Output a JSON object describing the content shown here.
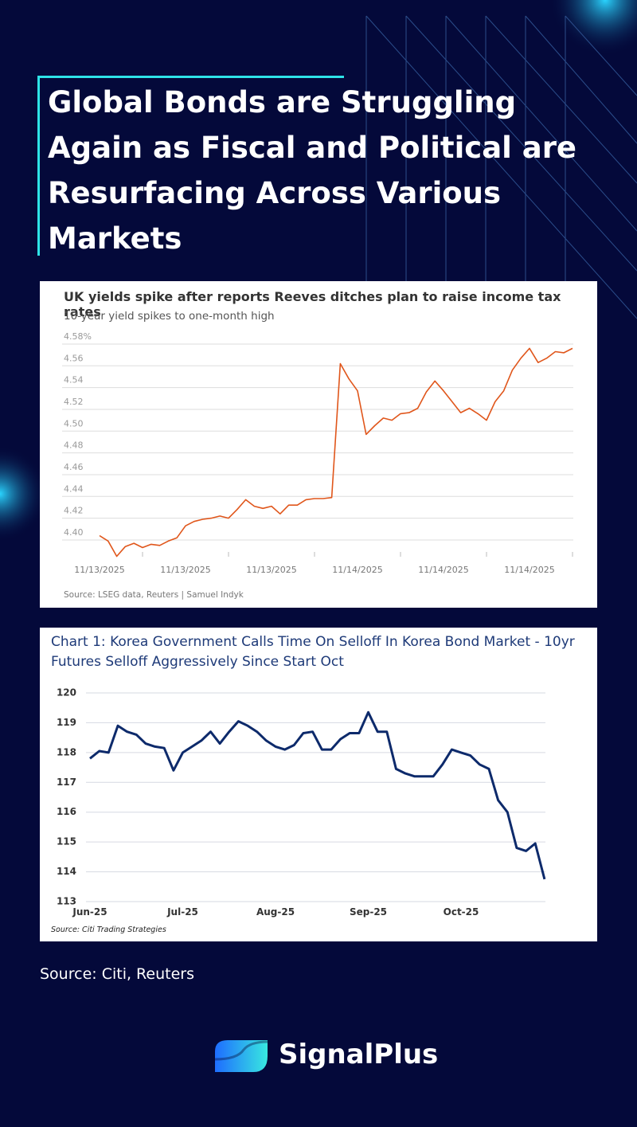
{
  "header": {
    "title": "Global Bonds are Struggling Again as Fiscal and Political are Resurfacing Across Various Markets"
  },
  "chart_data": [
    {
      "type": "line",
      "title": "UK yields spike after reports Reeves ditches plan to raise income tax rates",
      "subtitle": "10-year yield spikes to one-month high",
      "source": "Source: LSEG data, Reuters | Samuel Indyk",
      "categories": [
        "11/13/2025",
        null,
        null,
        null,
        null,
        null,
        null,
        null,
        null,
        null,
        "11/13/2025",
        null,
        null,
        null,
        null,
        null,
        null,
        null,
        null,
        null,
        "11/13/2025",
        null,
        null,
        null,
        null,
        null,
        null,
        null,
        null,
        null,
        "11/14/2025",
        null,
        null,
        null,
        null,
        null,
        null,
        null,
        null,
        null,
        "11/14/2025",
        null,
        null,
        null,
        null,
        null,
        null,
        null,
        null,
        null,
        "11/14/2025",
        null,
        null,
        null,
        null,
        null
      ],
      "series": [
        {
          "name": "10-year yield",
          "color": "#e0561b",
          "values": [
            4.404,
            4.399,
            4.385,
            4.394,
            4.397,
            4.393,
            4.396,
            4.395,
            4.399,
            4.402,
            4.413,
            4.417,
            4.419,
            4.42,
            4.422,
            4.42,
            4.428,
            4.437,
            4.431,
            4.429,
            4.431,
            4.424,
            4.432,
            4.432,
            4.437,
            4.438,
            4.438,
            4.439,
            4.562,
            4.548,
            4.537,
            4.497,
            4.505,
            4.512,
            4.51,
            4.516,
            4.517,
            4.521,
            4.536,
            4.546,
            4.537,
            4.527,
            4.517,
            4.521,
            4.516,
            4.51,
            4.527,
            4.537,
            4.556,
            4.567,
            4.576,
            4.563,
            4.567,
            4.573,
            4.572,
            4.576
          ]
        }
      ],
      "ylim": [
        4.38,
        4.59
      ],
      "yticks": [
        {
          "value": 4.4,
          "label": "4.40"
        },
        4.42,
        4.44,
        4.46,
        4.48,
        {
          "value": 4.5,
          "label": "4.50"
        },
        4.52,
        4.54,
        4.56,
        {
          "value": 4.58,
          "label": "4.58%"
        }
      ],
      "grid": true
    },
    {
      "type": "line",
      "title": "Chart 1: Korea Government Calls Time On Selloff In Korea Bond Market - 10yr Futures Selloff Aggressively Since Start Oct",
      "source": "Source: Citi Trading Strategies",
      "categories": [
        "Jun-25",
        null,
        null,
        null,
        null,
        null,
        null,
        null,
        null,
        null,
        "Jul-25",
        null,
        null,
        null,
        null,
        null,
        null,
        null,
        null,
        null,
        "Aug-25",
        null,
        null,
        null,
        null,
        null,
        null,
        null,
        null,
        null,
        "Sep-25",
        null,
        null,
        null,
        null,
        null,
        null,
        null,
        null,
        null,
        "Oct-25",
        null,
        null,
        null,
        null,
        null,
        null,
        null,
        null,
        null
      ],
      "series": [
        {
          "name": "10yr futures",
          "color": "#0d2a6b",
          "values": [
            117.8,
            118.05,
            118.0,
            118.9,
            118.7,
            118.6,
            118.3,
            118.2,
            118.15,
            117.4,
            118.0,
            118.2,
            118.4,
            118.7,
            118.3,
            118.7,
            119.05,
            118.9,
            118.7,
            118.4,
            118.2,
            118.1,
            118.25,
            118.65,
            118.7,
            118.1,
            118.1,
            118.45,
            118.65,
            118.65,
            119.35,
            118.7,
            118.7,
            117.45,
            117.3,
            117.2,
            117.2,
            117.2,
            117.6,
            118.1,
            118.0,
            117.9,
            117.6,
            117.45,
            116.4,
            116.0,
            114.8,
            114.7,
            114.95,
            113.75
          ]
        }
      ],
      "ylim": [
        113,
        120
      ],
      "yticks": [
        113,
        114,
        115,
        116,
        117,
        118,
        119,
        120
      ],
      "grid": true
    }
  ],
  "footer": {
    "source": "Source: Citi, Reuters",
    "brand": "SignalPlus"
  }
}
